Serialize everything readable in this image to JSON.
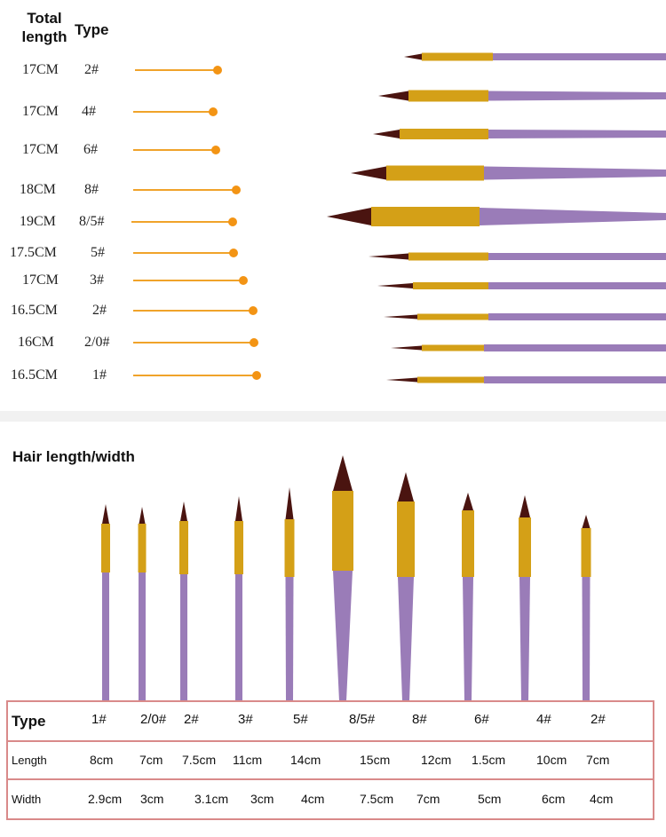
{
  "header": {
    "total_length_line1": "Total",
    "total_length_line2": "length",
    "type": "Type"
  },
  "length_rows": [
    {
      "length": "17CM",
      "type": "2#"
    },
    {
      "length": "17CM",
      "type": "4#"
    },
    {
      "length": "17CM",
      "type": "6#"
    },
    {
      "length": "18CM",
      "type": "8#"
    },
    {
      "length": "19CM",
      "type": "8/5#"
    },
    {
      "length": "17.5CM",
      "type": "5#"
    },
    {
      "length": "17CM",
      "type": "3#"
    },
    {
      "length": "16.5CM",
      "type": "2#"
    },
    {
      "length": "16CM",
      "type": "2/0#"
    },
    {
      "length": "16.5CM",
      "type": "1#"
    }
  ],
  "section_title": "Hair length/width",
  "table": {
    "type_label": "Type",
    "length_label": "Length",
    "width_label": "Width",
    "types": [
      "1#",
      "2/0#",
      "2#",
      "3#",
      "5#",
      "8/5#",
      "8#",
      "6#",
      "4#",
      "2#"
    ],
    "lengths": [
      "8cm",
      "7cm",
      "7.5cm",
      "11cm",
      "14cm",
      "15cm",
      "12cm",
      "1.5cm",
      "10cm",
      "7cm"
    ],
    "widths": [
      "2.9cm",
      "3cm",
      "3.1cm",
      "3cm",
      "4cm",
      "7.5cm",
      "7cm",
      "5cm",
      "6cm",
      "4cm"
    ]
  },
  "colors": {
    "accent_line": "#f0a32a",
    "accent_dot": "#f39414",
    "handle_purple": "#9a7cb8",
    "ferrule_gold": "#d4a017",
    "bristle_brown": "#4a1410",
    "table_border": "#d98a8a"
  }
}
